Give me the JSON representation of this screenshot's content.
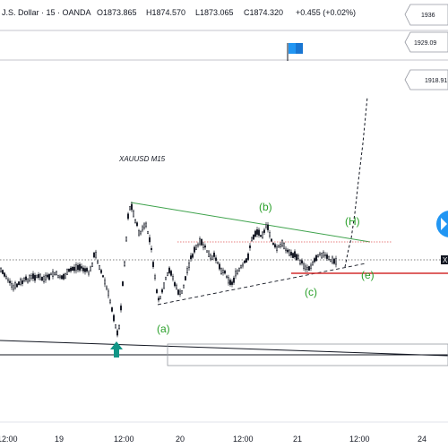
{
  "header": {
    "symbol_text": "J.S. Dollar · 15 · OANDA",
    "open": "O1873.865",
    "high": "H1874.570",
    "low": "L1873.065",
    "close": "C1874.320",
    "change": "+0.455 (+0.02%)"
  },
  "chart": {
    "title": "XAUUSD M15",
    "wave_labels": {
      "a": "(a)",
      "b": "(b)",
      "c": "(c)",
      "e": "(e)",
      "h": "(H)"
    },
    "price_tags": [
      "1936",
      "1929.09",
      "1918.91"
    ],
    "last_price_marker": "X",
    "x_ticks": [
      "12:00",
      "19",
      "12:00",
      "20",
      "12:00",
      "21",
      "12:00",
      "24"
    ]
  },
  "colors": {
    "up_candle": "#131722",
    "wave_label": "#2aa02a",
    "upper_trendline": "#3fa34d",
    "support_line": "#d32f2f",
    "resistance_dotted": "#e05555",
    "arrow": "#119586",
    "play_button": "#2196f3"
  },
  "icons": {
    "flag": "flag-icon",
    "arrow": "arrow-up-icon",
    "play": "play-icon",
    "close": "close-icon"
  }
}
